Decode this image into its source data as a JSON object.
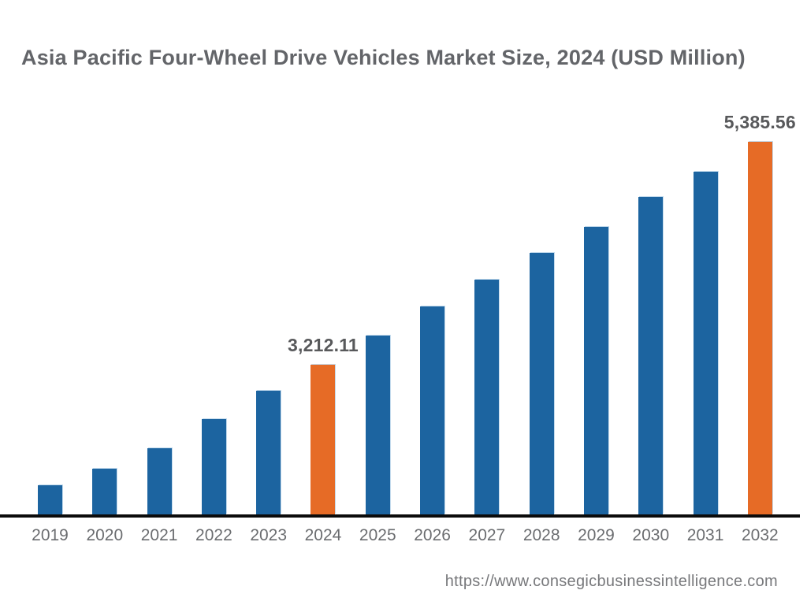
{
  "title": "Asia Pacific Four-Wheel Drive Vehicles Market Size, 2024 (USD Million)",
  "footer": {
    "url": "https://www.consegicbusinessintelligence.com"
  },
  "colors": {
    "bar_default": "#1C64A0",
    "bar_highlight": "#E66B26",
    "title_text": "#636569",
    "data_label_text": "#58595B",
    "tick_text": "#6B6D70",
    "axis_line": "#0b0b0b",
    "url_text": "#77787B",
    "background": "#ffffff"
  },
  "chart_data": {
    "type": "bar",
    "title": "Asia Pacific Four-Wheel Drive Vehicles Market Size, 2024 (USD Million)",
    "xlabel": "",
    "ylabel": "",
    "categories": [
      "2019",
      "2020",
      "2021",
      "2022",
      "2023",
      "2024",
      "2025",
      "2026",
      "2027",
      "2028",
      "2029",
      "2030",
      "2031",
      "2032"
    ],
    "values": [
      2037,
      2198,
      2398,
      2682,
      2959,
      3212.11,
      3496,
      3780,
      4042,
      4303,
      4556,
      4848,
      5094,
      5385.56
    ],
    "data_labels": {
      "2024": "3,212.11",
      "2032": "5,385.56"
    },
    "highlighted_categories": [
      "2024",
      "2032"
    ],
    "value_axis_hidden": true,
    "grid": false,
    "legend": false,
    "ylim": [
      1753,
      5846
    ]
  }
}
